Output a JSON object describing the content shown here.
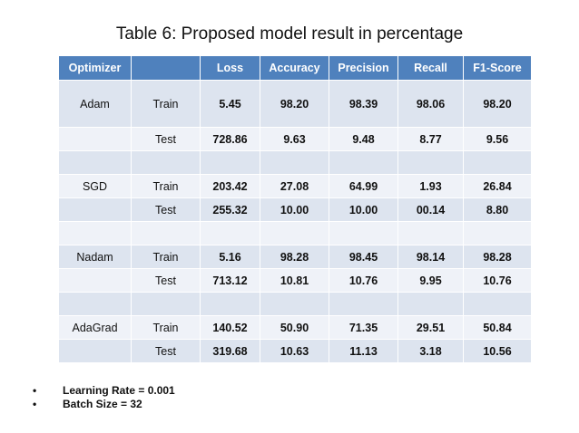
{
  "title": "Table 6: Proposed model result in percentage",
  "table": {
    "headers": [
      "Optimizer",
      "",
      "Loss",
      "Accuracy",
      "Precision",
      "Recall",
      "F1-Score"
    ],
    "rows": [
      [
        "Adam",
        "Train",
        "5.45",
        "98.20",
        "98.39",
        "98.06",
        "98.20"
      ],
      [
        "",
        "Test",
        "728.86",
        "9.63",
        "9.48",
        "8.77",
        "9.56"
      ],
      [
        "",
        "",
        "",
        "",
        "",
        "",
        ""
      ],
      [
        "SGD",
        "Train",
        "203.42",
        "27.08",
        "64.99",
        "1.93",
        "26.84"
      ],
      [
        "",
        "Test",
        "255.32",
        "10.00",
        "10.00",
        "00.14",
        "8.80"
      ],
      [
        "",
        "",
        "",
        "",
        "",
        "",
        ""
      ],
      [
        "Nadam",
        "Train",
        "5.16",
        "98.28",
        "98.45",
        "98.14",
        "98.28"
      ],
      [
        "",
        "Test",
        "713.12",
        "10.81",
        "10.76",
        "9.95",
        "10.76"
      ],
      [
        "",
        "",
        "",
        "",
        "",
        "",
        ""
      ],
      [
        "AdaGrad",
        "Train",
        "140.52",
        "50.90",
        "71.35",
        "29.51",
        "50.84"
      ],
      [
        "",
        "Test",
        "319.68",
        "10.63",
        "11.13",
        "3.18",
        "10.56"
      ]
    ]
  },
  "notes": [
    {
      "bullet": "•",
      "text": "Learning Rate = 0.001"
    },
    {
      "bullet": "•",
      "text": "Batch Size = 32"
    }
  ]
}
